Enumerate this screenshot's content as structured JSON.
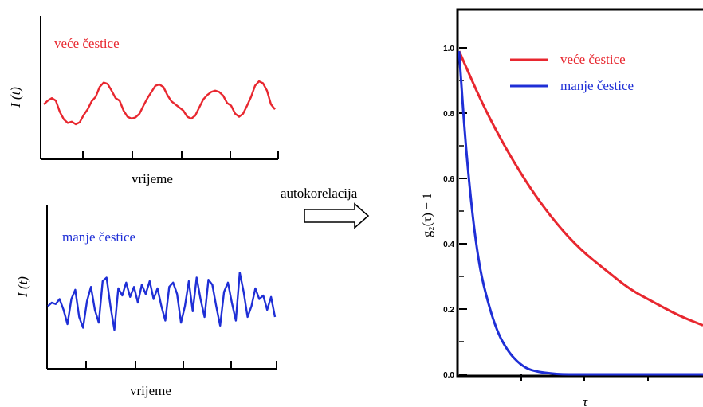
{
  "colors": {
    "red": "#e8272f",
    "blue": "#1f2fd6",
    "axis": "#000000"
  },
  "arrow_label": "autokorelacija",
  "top_panel": {
    "ylabel": "I (t)",
    "xlabel": "vrijeme",
    "series_label": "veće čestice",
    "color_key": "red",
    "signal": [
      0.5,
      0.56,
      0.6,
      0.56,
      0.38,
      0.26,
      0.2,
      0.22,
      0.18,
      0.21,
      0.33,
      0.42,
      0.55,
      0.62,
      0.78,
      0.85,
      0.83,
      0.72,
      0.6,
      0.56,
      0.4,
      0.3,
      0.27,
      0.29,
      0.35,
      0.48,
      0.6,
      0.7,
      0.8,
      0.82,
      0.78,
      0.65,
      0.55,
      0.5,
      0.45,
      0.4,
      0.3,
      0.27,
      0.32,
      0.45,
      0.58,
      0.65,
      0.7,
      0.72,
      0.7,
      0.64,
      0.52,
      0.48,
      0.35,
      0.3,
      0.35,
      0.48,
      0.62,
      0.8,
      0.87,
      0.84,
      0.72,
      0.5,
      0.42
    ]
  },
  "bottom_panel": {
    "ylabel": "I (t)",
    "xlabel": "vrijeme",
    "series_label": "manje čestice",
    "color_key": "blue",
    "signal": [
      0.45,
      0.5,
      0.48,
      0.55,
      0.4,
      0.2,
      0.55,
      0.68,
      0.3,
      0.15,
      0.52,
      0.72,
      0.4,
      0.22,
      0.8,
      0.85,
      0.45,
      0.12,
      0.7,
      0.6,
      0.78,
      0.58,
      0.72,
      0.5,
      0.75,
      0.62,
      0.8,
      0.55,
      0.7,
      0.45,
      0.25,
      0.72,
      0.78,
      0.62,
      0.22,
      0.45,
      0.8,
      0.38,
      0.85,
      0.55,
      0.3,
      0.82,
      0.75,
      0.45,
      0.18,
      0.65,
      0.78,
      0.5,
      0.25,
      0.92,
      0.65,
      0.3,
      0.45,
      0.7,
      0.55,
      0.6,
      0.4,
      0.58,
      0.3
    ]
  },
  "chart_data": {
    "type": "line",
    "xlabel": "τ",
    "ylabel": "g₂(τ) − 1",
    "ylim": [
      0.0,
      1.0
    ],
    "yticks": [
      "0.0",
      "0.2",
      "0.4",
      "0.6",
      "0.8",
      "1.0"
    ],
    "legend_position": "top-right",
    "series": [
      {
        "name": "veće čestice",
        "color_key": "red",
        "x": [
          0,
          0.1,
          0.2,
          0.3,
          0.4,
          0.5,
          0.6,
          0.7,
          0.8,
          0.9,
          1.0
        ],
        "values": [
          0.99,
          0.82,
          0.68,
          0.56,
          0.46,
          0.38,
          0.32,
          0.26,
          0.22,
          0.18,
          0.15
        ]
      },
      {
        "name": "manje čestice",
        "color_key": "blue",
        "x": [
          0,
          0.025,
          0.05,
          0.075,
          0.1,
          0.15,
          0.2,
          0.25,
          0.3,
          0.4,
          0.5,
          0.7,
          1.0
        ],
        "values": [
          0.99,
          0.72,
          0.52,
          0.37,
          0.27,
          0.14,
          0.07,
          0.03,
          0.01,
          0.0,
          0.0,
          0.0,
          0.0
        ]
      }
    ]
  }
}
